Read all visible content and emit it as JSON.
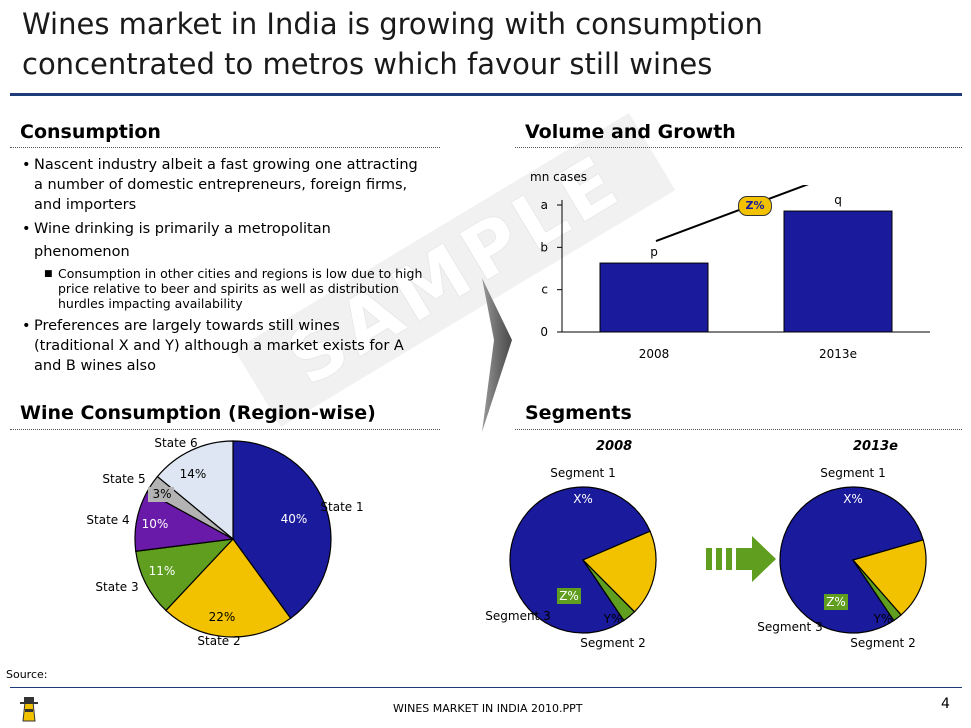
{
  "title": {
    "line1": "Wines market in India is growing with consumption",
    "line2": "concentrated to metros which favour still wines"
  },
  "watermark": "SAMPLE",
  "consumption": {
    "heading": "Consumption",
    "b1": [
      "Nascent industry albeit a fast growing one attracting",
      "a number of domestic entrepreneurs, foreign firms,",
      "and importers"
    ],
    "b2": [
      "Wine drinking is primarily a metropolitan",
      "phenomenon"
    ],
    "sub": [
      "Consumption in other cities and regions is low due to high",
      "price relative to beer and spirits as well as distribution",
      "hurdles impacting availability"
    ],
    "b3": [
      "Preferences are largely towards still wines",
      "(traditional X and Y) although a market exists for A",
      "and B wines also"
    ]
  },
  "volume": {
    "heading": "Volume and Growth",
    "unit": "mn cases",
    "growth_label": "Z%"
  },
  "chart_data": [
    {
      "type": "bar",
      "title": "Volume and Growth",
      "ylabel": "mn cases",
      "categories": [
        "2008",
        "2013e"
      ],
      "values": [
        0.57,
        1.0
      ],
      "data_labels": [
        "p",
        "q"
      ],
      "y_tick_labels": [
        "0",
        "c",
        "b",
        "a"
      ],
      "y_ticks": [
        0,
        0.35,
        0.7,
        1.05
      ],
      "ylim": [
        0,
        1.05
      ],
      "annotation": "Z%",
      "color": "#1a1a9c"
    },
    {
      "type": "pie",
      "title": "Wine Consumption (Region-wise)",
      "labels": [
        "State 1",
        "State 2",
        "State 3",
        "State 4",
        "State 5",
        "State 6"
      ],
      "values": [
        40,
        22,
        11,
        10,
        3,
        14
      ],
      "value_labels": [
        "40%",
        "22%",
        "11%",
        "10%",
        "3%",
        "14%"
      ],
      "colors": [
        "#1a1a9c",
        "#f2c200",
        "#5f9e1e",
        "#6a1aa8",
        "#b3b3b3",
        "#dde6f2"
      ]
    },
    {
      "type": "pie",
      "title": "2008",
      "labels": [
        "Segment 1",
        "Segment 2",
        "Segment 3"
      ],
      "values": [
        78,
        19,
        3
      ],
      "value_labels": [
        "X%",
        "Y%",
        "Z%"
      ],
      "colors": [
        "#1a1a9c",
        "#f2c200",
        "#5f9e1e"
      ]
    },
    {
      "type": "pie",
      "title": "2013e",
      "labels": [
        "Segment 1",
        "Segment 2",
        "Segment 3"
      ],
      "values": [
        80,
        18,
        2
      ],
      "value_labels": [
        "X%",
        "Y%",
        "Z%"
      ],
      "colors": [
        "#1a1a9c",
        "#f2c200",
        "#5f9e1e"
      ]
    }
  ],
  "region": {
    "heading": "Wine Consumption (Region-wise)"
  },
  "segments": {
    "heading": "Segments",
    "year1": "2008",
    "year2": "2013e"
  },
  "footer": {
    "source": "Source:",
    "file": "WINES MARKET IN INDIA 2010.PPT",
    "page": "4"
  }
}
